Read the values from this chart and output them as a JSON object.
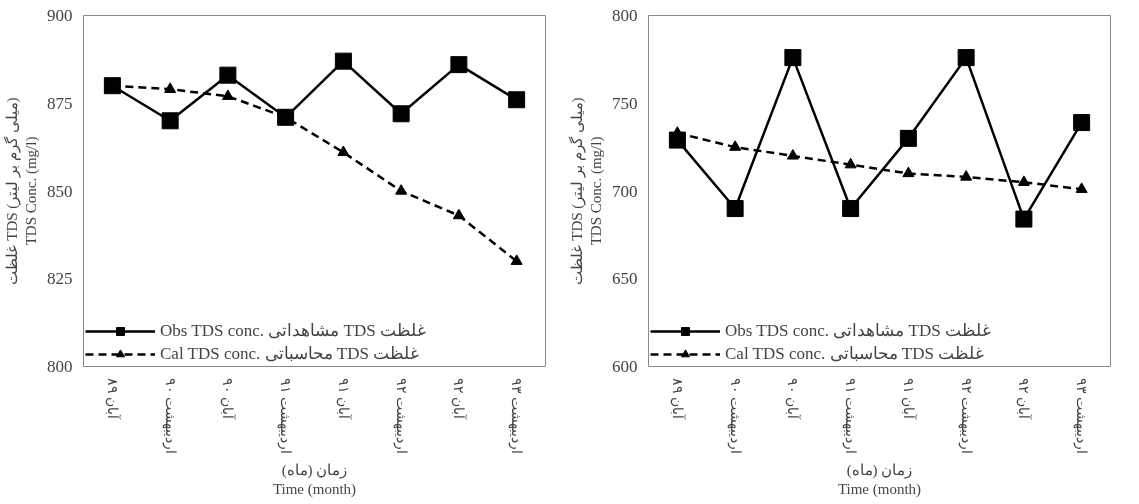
{
  "chart_data": [
    {
      "type": "line",
      "categories": [
        "آبان ۸۹",
        "اردیبهشت ۹۰",
        "آبان ۹۰",
        "اردیبهشت ۹۱",
        "آبان ۹۱",
        "اردیبهشت ۹۲",
        "آبان ۹۲",
        "اردیبهشت ۹۳"
      ],
      "xlabel": "زمان (ماه)\nTime (month)",
      "ylabel": "غلظت TDS (میلی گرم بر لیتر)\nTDS Conc. (mg/l)",
      "ylim": [
        800,
        900
      ],
      "yticks": [
        800,
        825,
        850,
        875,
        900
      ],
      "grid": false,
      "legend": "bottom left",
      "series": [
        {
          "name": "Obs TDS conc. مشاهداتی TDS غلظت",
          "color": "#000000",
          "marker": "square",
          "line_style": "solid",
          "values": [
            880,
            870,
            883,
            871,
            887,
            872,
            886,
            876
          ]
        },
        {
          "name": "Cal TDS conc. محاسباتی TDS غلظت",
          "color": "#000000",
          "marker": "triangle",
          "line_style": "dashed",
          "values": [
            880,
            879,
            877,
            871,
            861,
            850,
            843,
            830
          ]
        }
      ]
    },
    {
      "type": "line",
      "categories": [
        "آبان ۸۹",
        "اردیبهشت ۹۰",
        "آبان ۹۰",
        "اردیبهشت ۹۱",
        "آبان ۹۱",
        "اردیبهشت ۹۲",
        "آبان ۹۲",
        "اردیبهشت ۹۳"
      ],
      "xlabel": "زمان (ماه)\nTime (month)",
      "ylabel": "غلظت TDS (میلی گرم بر لیتر)\nTDS Conc. (mg/l)",
      "ylim": [
        600,
        800
      ],
      "yticks": [
        600,
        650,
        700,
        750,
        800
      ],
      "grid": false,
      "legend": "bottom left",
      "series": [
        {
          "name": "Obs TDS conc. مشاهداتی TDS غلظت",
          "color": "#000000",
          "marker": "square",
          "line_style": "solid",
          "values": [
            729,
            690,
            776,
            690,
            730,
            776,
            684,
            739
          ]
        },
        {
          "name": "Cal TDS conc. محاسباتی TDS غلظت",
          "color": "#000000",
          "marker": "triangle",
          "line_style": "dashed",
          "values": [
            733,
            725,
            720,
            715,
            710,
            708,
            705,
            701
          ]
        }
      ]
    }
  ]
}
